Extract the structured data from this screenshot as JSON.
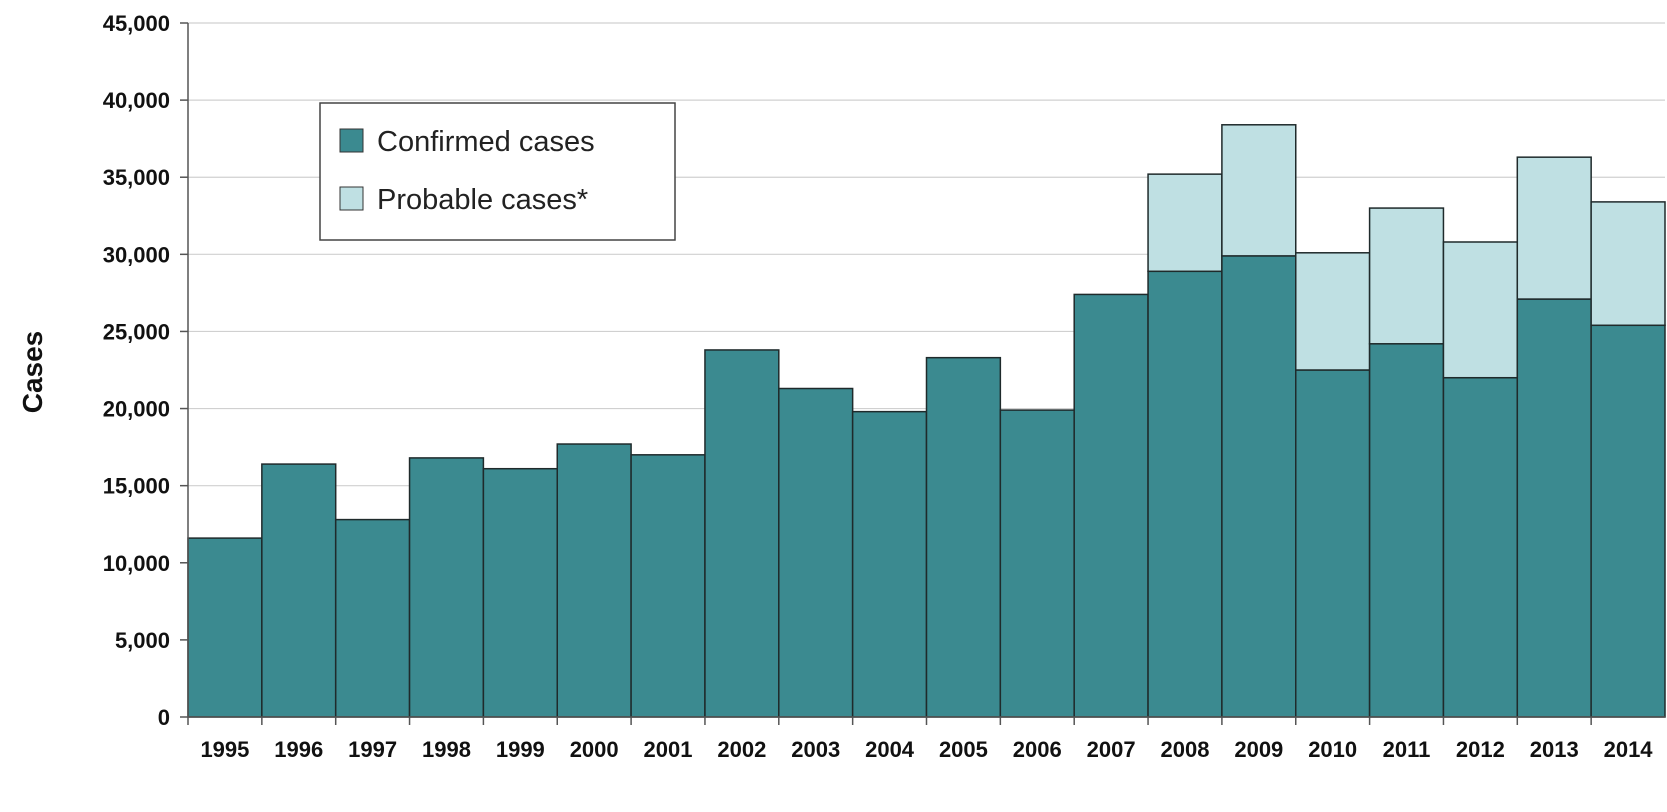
{
  "chart_data": {
    "type": "bar",
    "stacked": true,
    "categories": [
      "1995",
      "1996",
      "1997",
      "1998",
      "1999",
      "2000",
      "2001",
      "2002",
      "2003",
      "2004",
      "2005",
      "2006",
      "2007",
      "2008",
      "2009",
      "2010",
      "2011",
      "2012",
      "2013",
      "2014"
    ],
    "series": [
      {
        "name": "Confirmed cases",
        "color": "#3b8a90",
        "values": [
          11600,
          16400,
          12800,
          16800,
          16100,
          17700,
          17000,
          23800,
          21300,
          19800,
          23300,
          19900,
          27400,
          28900,
          29900,
          22500,
          24200,
          22000,
          27100,
          25400
        ]
      },
      {
        "name": "Probable cases*",
        "color": "#bfe0e3",
        "values": [
          0,
          0,
          0,
          0,
          0,
          0,
          0,
          0,
          0,
          0,
          0,
          0,
          0,
          6300,
          8500,
          7600,
          8800,
          8800,
          9200,
          8000
        ]
      }
    ],
    "ylabel": "Cases",
    "xlabel": "",
    "ylim": [
      0,
      45000
    ],
    "yticks": [
      "0",
      "5,000",
      "10,000",
      "15,000",
      "20,000",
      "25,000",
      "30,000",
      "35,000",
      "40,000",
      "45,000"
    ],
    "grid": true,
    "legend_position": "top-left"
  }
}
